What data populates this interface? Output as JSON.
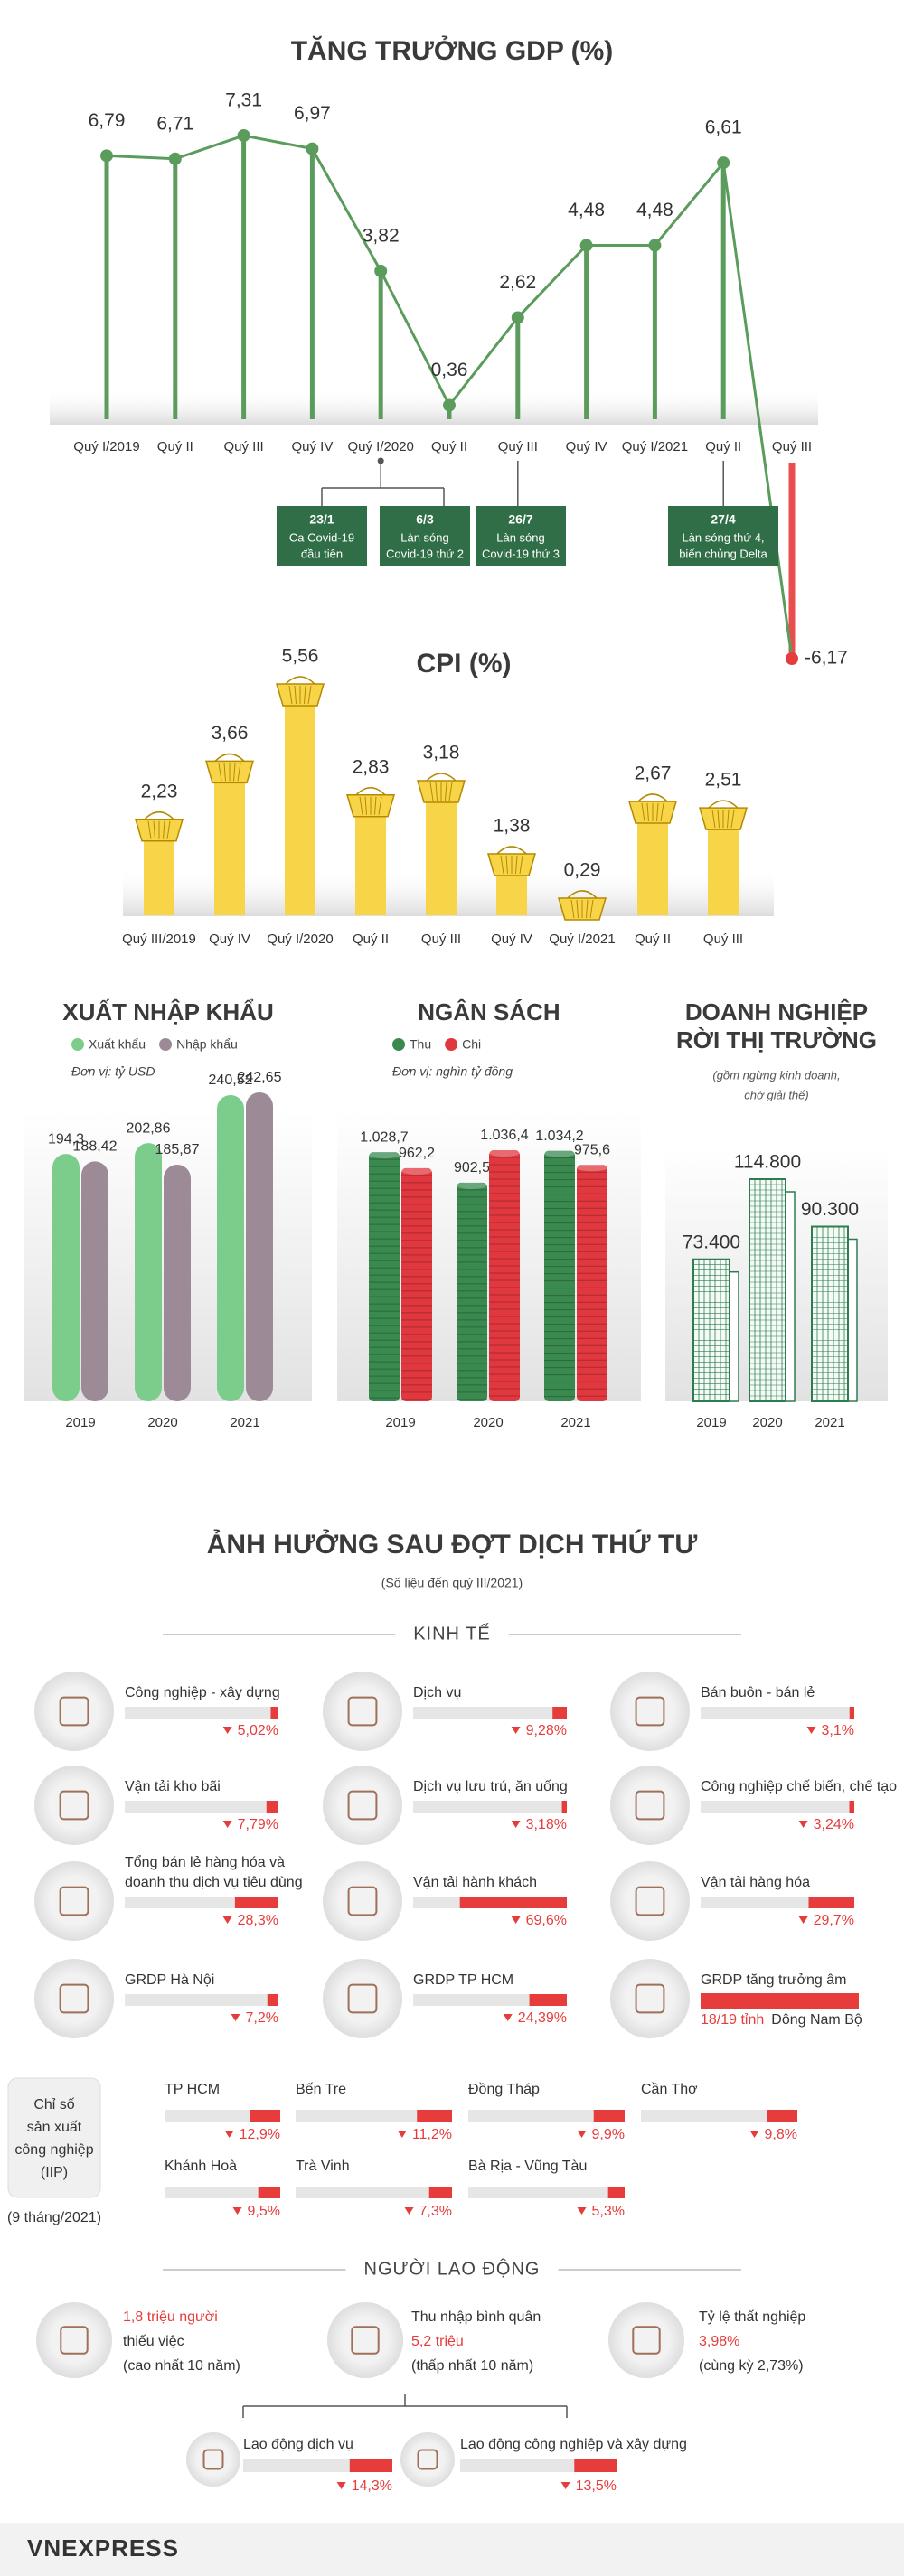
{
  "chart_data": [
    {
      "type": "line",
      "title": "TĂNG TRƯỞNG GDP (%)",
      "categories": [
        "Quý I/2019",
        "Quý II",
        "Quý III",
        "Quý IV",
        "Quý I/2020",
        "Quý II",
        "Quý III",
        "Quý IV",
        "Quý I/2021",
        "Quý II",
        "Quý III"
      ],
      "values": [
        6.79,
        6.71,
        7.31,
        6.97,
        3.82,
        0.36,
        2.62,
        4.48,
        4.48,
        6.61,
        -6.17
      ],
      "value_labels": [
        "6,79",
        "6,71",
        "7,31",
        "6,97",
        "3,82",
        "0,36",
        "2,62",
        "4,48",
        "4,48",
        "6,61",
        "-6,17"
      ],
      "color": "#5b9c5d",
      "negative_color": "#e63c3c",
      "annotations": [
        {
          "date": "23/1",
          "text": [
            "Ca Covid-19",
            "đầu tiên"
          ]
        },
        {
          "date": "6/3",
          "text": [
            "Làn sóng",
            "Covid-19 thứ 2"
          ]
        },
        {
          "date": "26/7",
          "text": [
            "Làn sóng",
            "Covid-19 thứ 3"
          ]
        },
        {
          "date": "27/4",
          "text": [
            "Làn sóng thứ 4,",
            "biến chủng Delta"
          ]
        }
      ]
    },
    {
      "type": "bar",
      "mark_style": "basket",
      "title": "CPI (%)",
      "categories": [
        "Quý III/2019",
        "Quý IV",
        "Quý I/2020",
        "Quý II",
        "Quý III",
        "Quý IV",
        "Quý I/2021",
        "Quý II",
        "Quý III"
      ],
      "values": [
        2.23,
        3.66,
        5.56,
        2.83,
        3.18,
        1.38,
        0.29,
        2.67,
        2.51
      ],
      "value_labels": [
        "2,23",
        "3,66",
        "5,56",
        "2,83",
        "3,18",
        "1,38",
        "0,29",
        "2,67",
        "2,51"
      ],
      "color": "#f8d548"
    },
    {
      "type": "grouped_bar",
      "mark_style": "capsule",
      "title": "XUẤT NHẬP KHẨU",
      "unit": "Đơn vị: tỷ USD",
      "categories": [
        "2019",
        "2020",
        "2021"
      ],
      "series": [
        {
          "name": "Xuất khẩu",
          "color": "#7ccd8c",
          "values": [
            194.3,
            202.86,
            240.52
          ],
          "value_labels": [
            "194,3",
            "202,86",
            "240,52"
          ]
        },
        {
          "name": "Nhập khẩu",
          "color": "#9c8b96",
          "values": [
            188.42,
            185.87,
            242.65
          ],
          "value_labels": [
            "188,42",
            "185,87",
            "242,65"
          ]
        }
      ]
    },
    {
      "type": "grouped_bar",
      "mark_style": "coins",
      "title": "NGÂN SÁCH",
      "unit": "Đơn vị: nghìn tỷ đồng",
      "categories": [
        "2019",
        "2020",
        "2021"
      ],
      "series": [
        {
          "name": "Thu",
          "color": "#3a8a50",
          "values": [
            1028.7,
            902.5,
            1034.2
          ],
          "value_labels": [
            "1.028,7",
            "902,5",
            "1.034,2"
          ]
        },
        {
          "name": "Chi",
          "color": "#e0383e",
          "values": [
            962.2,
            1036.4,
            975.6
          ],
          "value_labels": [
            "962,2",
            "1.036,4",
            "975,6"
          ]
        }
      ]
    },
    {
      "type": "bar",
      "mark_style": "building",
      "title": [
        "DOANH NGHIỆP",
        "RỜI THỊ TRƯỜNG"
      ],
      "subtitle": [
        "(gồm ngừng kinh doanh,",
        "chờ giải thể)"
      ],
      "categories": [
        "2019",
        "2020",
        "2021"
      ],
      "values": [
        73400,
        114800,
        90300
      ],
      "value_labels": [
        "73.400",
        "114.800",
        "90.300"
      ],
      "color": "#2e7d4f"
    }
  ],
  "impact": {
    "title": "ẢNH HƯỞNG SAU ĐỢT DỊCH THỨ TƯ",
    "subtitle": "(Số liệu đến quý III/2021)",
    "economy": {
      "heading": "KINH TẾ",
      "items": [
        {
          "label": [
            "Công nghiệp - xây dựng"
          ],
          "value": 5.02,
          "value_label": "5,02%"
        },
        {
          "label": [
            "Dịch vụ"
          ],
          "value": 9.28,
          "value_label": "9,28%"
        },
        {
          "label": [
            "Bán buôn - bán lẻ"
          ],
          "value": 3.1,
          "value_label": "3,1%"
        },
        {
          "label": [
            "Vận tải kho bãi"
          ],
          "value": 7.79,
          "value_label": "7,79%"
        },
        {
          "label": [
            "Dịch vụ lưu trú, ăn uống"
          ],
          "value": 3.18,
          "value_label": "3,18%"
        },
        {
          "label": [
            "Công nghiệp chế biến, chế tạo"
          ],
          "value": 3.24,
          "value_label": "3,24%"
        },
        {
          "label": [
            "Tổng bán lẻ hàng hóa và",
            "doanh thu dịch vụ tiêu dùng"
          ],
          "value": 28.3,
          "value_label": "28,3%"
        },
        {
          "label": [
            "Vận tải hành khách"
          ],
          "value": 69.6,
          "value_label": "69,6%"
        },
        {
          "label": [
            "Vận tải hàng hóa"
          ],
          "value": 29.7,
          "value_label": "29,7%"
        },
        {
          "label": [
            "GRDP Hà Nội"
          ],
          "value": 7.2,
          "value_label": "7,2%"
        },
        {
          "label": [
            "GRDP TP HCM"
          ],
          "value": 24.39,
          "value_label": "24,39%"
        }
      ],
      "negative_growth": {
        "label": "GRDP tăng trưởng âm",
        "value": "18/19 tỉnh",
        "region": "Đông Nam Bộ"
      }
    },
    "iip": {
      "label": [
        "Chỉ số",
        "sản xuất",
        "công nghiệp",
        "(IIP)"
      ],
      "period": "(9 tháng/2021)",
      "items": [
        {
          "name": "TP HCM",
          "value": 12.9,
          "value_label": "12,9%"
        },
        {
          "name": "Bến Tre",
          "value": 11.2,
          "value_label": "11,2%"
        },
        {
          "name": "Đồng Tháp",
          "value": 9.9,
          "value_label": "9,9%"
        },
        {
          "name": "Cần Thơ",
          "value": 9.8,
          "value_label": "9,8%"
        },
        {
          "name": "Khánh Hoà",
          "value": 9.5,
          "value_label": "9,5%"
        },
        {
          "name": "Trà Vinh",
          "value": 7.3,
          "value_label": "7,3%"
        },
        {
          "name": "Bà Rịa - Vũng Tàu",
          "value": 5.3,
          "value_label": "5,3%"
        }
      ]
    },
    "labor": {
      "heading": "NGƯỜI LAO ĐỘNG",
      "highlights": [
        {
          "lines": [
            "1,8 triệu người",
            "thiếu việc",
            "(cao nhất 10 năm)"
          ],
          "highlight": 0
        },
        {
          "lines": [
            "Thu nhập bình quân",
            "5,2 triệu",
            "(thấp nhất 10 năm)"
          ],
          "highlight": 1
        },
        {
          "lines": [
            "Tỷ lệ thất nghiệp",
            "3,98%",
            "(cùng kỳ 2,73%)"
          ],
          "highlight": 1
        }
      ],
      "sectors": [
        {
          "name": "Lao động dịch vụ",
          "value": 14.3,
          "value_label": "14,3%"
        },
        {
          "name": "Lao động công nghiệp và xây dựng",
          "value": 13.5,
          "value_label": "13,5%"
        }
      ]
    }
  },
  "footer": {
    "brand": "VNEXPRESS"
  }
}
